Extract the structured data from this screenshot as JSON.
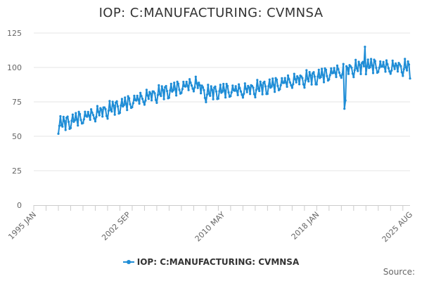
{
  "chart_data": {
    "type": "line",
    "title": "IOP: C:MANUFACTURING: CVMNSA",
    "xlabel": "",
    "ylabel": "",
    "x_ticks": [
      "1995 JAN",
      "2002 SEP",
      "2010 MAY",
      "2018 JAN",
      "2025 AUG"
    ],
    "y_ticks": [
      0,
      25,
      50,
      75,
      100,
      125
    ],
    "ylim": [
      0,
      125
    ],
    "xlim": [
      "1995-01",
      "2025-08"
    ],
    "grid": true,
    "legend": "bottom-center",
    "credits": "Source:",
    "series": [
      {
        "name": "IOP: C:MANUFACTURING: CVMNSA",
        "color": "#1f8dd6",
        "start": "1997-01",
        "frequency": "monthly",
        "trend_points": [
          {
            "x": "1997-01",
            "y": 57
          },
          {
            "x": "1998-06",
            "y": 61
          },
          {
            "x": "2000-01",
            "y": 65
          },
          {
            "x": "2002-01",
            "y": 71
          },
          {
            "x": "2004-01",
            "y": 77
          },
          {
            "x": "2006-01",
            "y": 82
          },
          {
            "x": "2008-03",
            "y": 87
          },
          {
            "x": "2009-01",
            "y": 80
          },
          {
            "x": "2010-06",
            "y": 82
          },
          {
            "x": "2012-01",
            "y": 82
          },
          {
            "x": "2014-01",
            "y": 85
          },
          {
            "x": "2016-01",
            "y": 89
          },
          {
            "x": "2018-01",
            "y": 92
          },
          {
            "x": "2019-06",
            "y": 95
          },
          {
            "x": "2020-12",
            "y": 98
          },
          {
            "x": "2022-06",
            "y": 100
          },
          {
            "x": "2024-01",
            "y": 99
          },
          {
            "x": "2025-08",
            "y": 99
          }
        ],
        "seasonal_amplitude": 6,
        "events": [
          {
            "x": "2020-04",
            "y": 70
          },
          {
            "x": "2020-05",
            "y": 76
          },
          {
            "x": "2021-12",
            "y": 115
          },
          {
            "x": "2025-08",
            "y": 92
          }
        ]
      }
    ]
  }
}
